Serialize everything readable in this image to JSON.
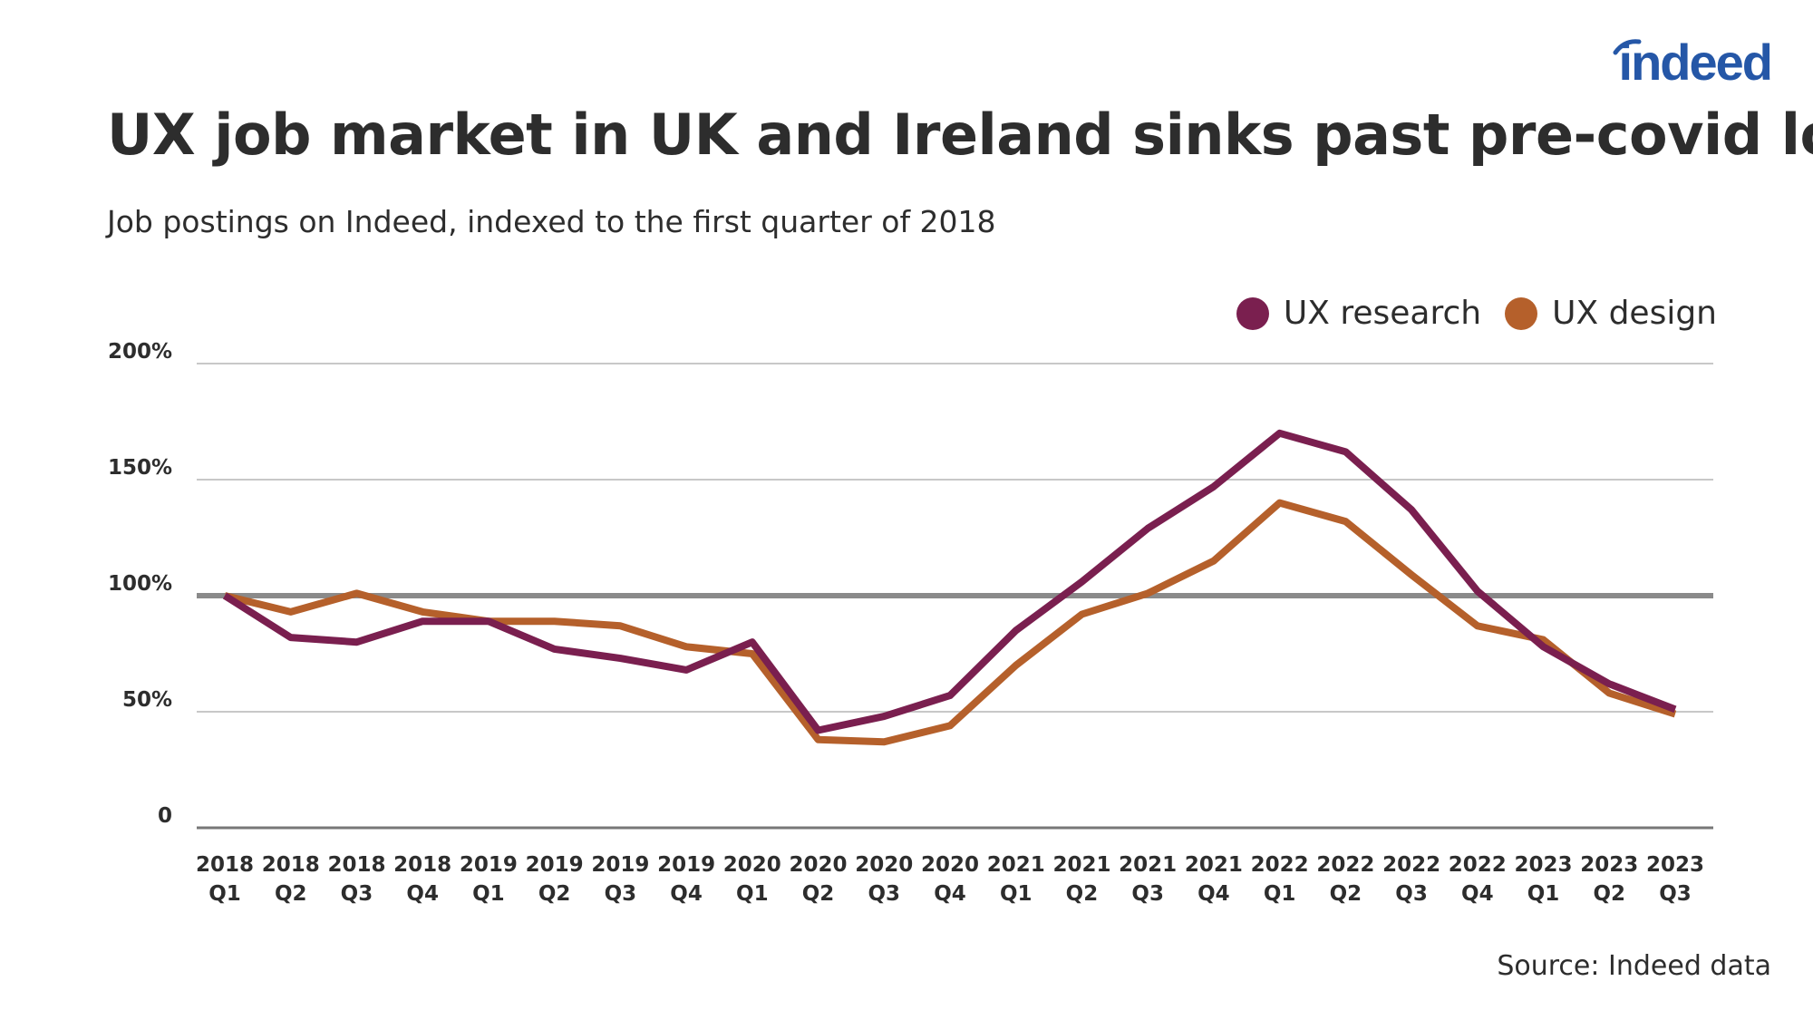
{
  "brand": {
    "logo_text": "indeed",
    "logo_color": "#2557a7"
  },
  "source": "Source: Indeed data",
  "chart_data": {
    "type": "line",
    "title": "UX job market in UK and Ireland sinks past pre-covid low",
    "subtitle": "Job postings on Indeed, indexed to the first quarter of 2018",
    "xlabel": "",
    "ylabel": "",
    "ylim": [
      0,
      200
    ],
    "grid": true,
    "legend_position": "top-right",
    "reference_line": 100,
    "y_ticks": [
      {
        "value": 0,
        "label": "0"
      },
      {
        "value": 50,
        "label": "50%"
      },
      {
        "value": 100,
        "label": "100%"
      },
      {
        "value": 150,
        "label": "150%"
      },
      {
        "value": 200,
        "label": "200%"
      }
    ],
    "categories": [
      {
        "year": "2018",
        "quarter": "Q1"
      },
      {
        "year": "2018",
        "quarter": "Q2"
      },
      {
        "year": "2018",
        "quarter": "Q3"
      },
      {
        "year": "2018",
        "quarter": "Q4"
      },
      {
        "year": "2019",
        "quarter": "Q1"
      },
      {
        "year": "2019",
        "quarter": "Q2"
      },
      {
        "year": "2019",
        "quarter": "Q3"
      },
      {
        "year": "2019",
        "quarter": "Q4"
      },
      {
        "year": "2020",
        "quarter": "Q1"
      },
      {
        "year": "2020",
        "quarter": "Q2"
      },
      {
        "year": "2020",
        "quarter": "Q3"
      },
      {
        "year": "2020",
        "quarter": "Q4"
      },
      {
        "year": "2021",
        "quarter": "Q1"
      },
      {
        "year": "2021",
        "quarter": "Q2"
      },
      {
        "year": "2021",
        "quarter": "Q3"
      },
      {
        "year": "2021",
        "quarter": "Q4"
      },
      {
        "year": "2022",
        "quarter": "Q1"
      },
      {
        "year": "2022",
        "quarter": "Q2"
      },
      {
        "year": "2022",
        "quarter": "Q3"
      },
      {
        "year": "2022",
        "quarter": "Q4"
      },
      {
        "year": "2023",
        "quarter": "Q1"
      },
      {
        "year": "2023",
        "quarter": "Q2"
      },
      {
        "year": "2023",
        "quarter": "Q3"
      }
    ],
    "series": [
      {
        "name": "UX research",
        "color": "#7a1f4f",
        "values": [
          100,
          82,
          80,
          89,
          89,
          77,
          73,
          68,
          80,
          42,
          48,
          57,
          85,
          106,
          129,
          147,
          170,
          162,
          137,
          102,
          78,
          62,
          51
        ]
      },
      {
        "name": "UX design",
        "color": "#b5602b",
        "values": [
          100,
          93,
          101,
          93,
          89,
          89,
          87,
          78,
          75,
          38,
          37,
          44,
          70,
          92,
          101,
          115,
          140,
          132,
          109,
          87,
          81,
          58,
          49
        ]
      }
    ]
  }
}
